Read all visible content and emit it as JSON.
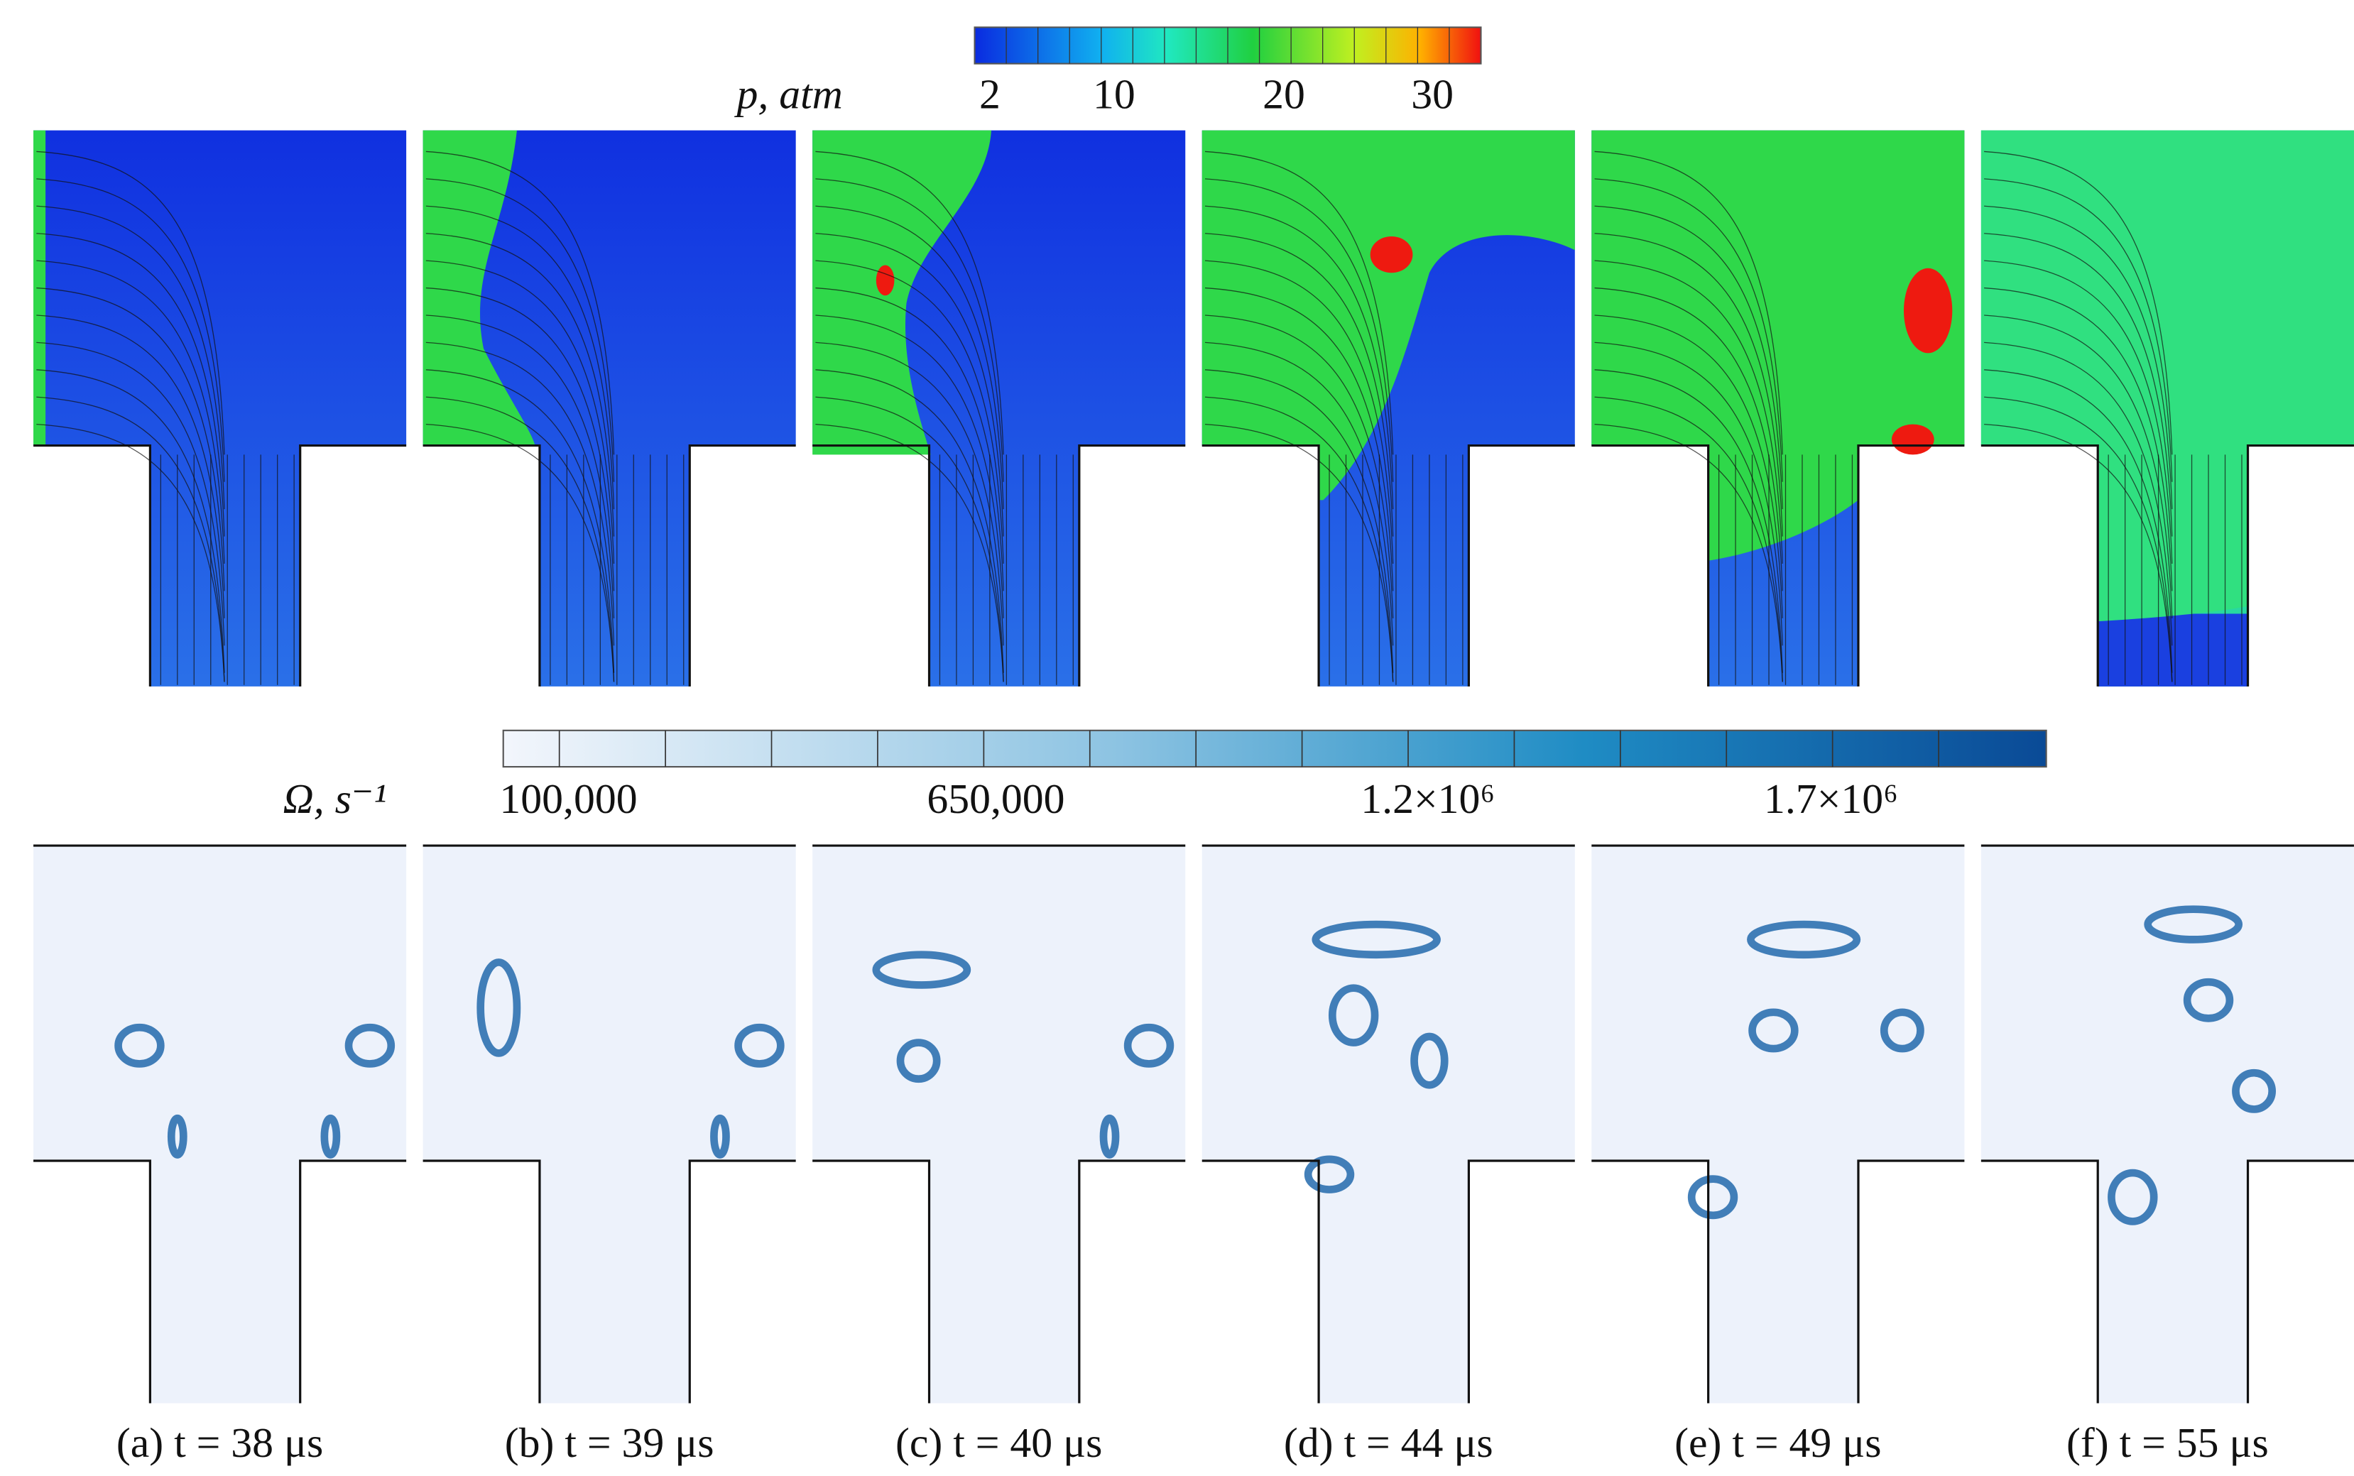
{
  "pressure_colorbar": {
    "label": "p, atm",
    "ticks": [
      "2",
      "10",
      "20",
      "30"
    ]
  },
  "vorticity_colorbar": {
    "label": "Ω, s⁻¹",
    "ticks": [
      "100,000",
      "650,000",
      "1.2×10⁶",
      "1.7×10⁶"
    ]
  },
  "panels": [
    {
      "caption": "(a) t = 38 μs"
    },
    {
      "caption": "(b) t = 39 μs"
    },
    {
      "caption": "(c) t = 40 μs"
    },
    {
      "caption": "(d) t = 44 μs"
    },
    {
      "caption": "(e) t = 49 μs"
    },
    {
      "caption": "(f) t = 55 μs"
    }
  ]
}
